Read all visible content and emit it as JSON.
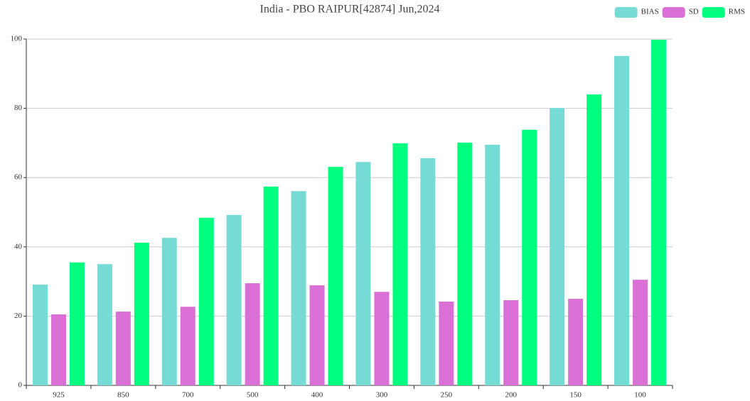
{
  "chart_data": {
    "type": "bar",
    "title": "India - PBO RAIPUR[42874] Jun,2024",
    "categories": [
      "925",
      "850",
      "700",
      "500",
      "400",
      "300",
      "250",
      "200",
      "150",
      "100"
    ],
    "series": [
      {
        "name": "BIAS",
        "color": "#76dbd5",
        "values": [
          29.1,
          35.0,
          42.6,
          49.2,
          56.1,
          64.5,
          65.6,
          69.5,
          80.1,
          95.1
        ]
      },
      {
        "name": "SD",
        "color": "#da70d6",
        "values": [
          20.5,
          21.3,
          22.7,
          29.5,
          28.9,
          27.0,
          24.2,
          24.6,
          25.0,
          30.5
        ]
      },
      {
        "name": "RMS",
        "color": "#00ff7f",
        "values": [
          35.5,
          41.2,
          48.4,
          57.4,
          63.1,
          69.9,
          70.1,
          73.8,
          84.0,
          99.8
        ]
      }
    ],
    "ylim": [
      0,
      100
    ],
    "yticks": [
      0,
      20,
      40,
      60,
      80,
      100
    ],
    "grid": true,
    "legend": "top-right"
  }
}
